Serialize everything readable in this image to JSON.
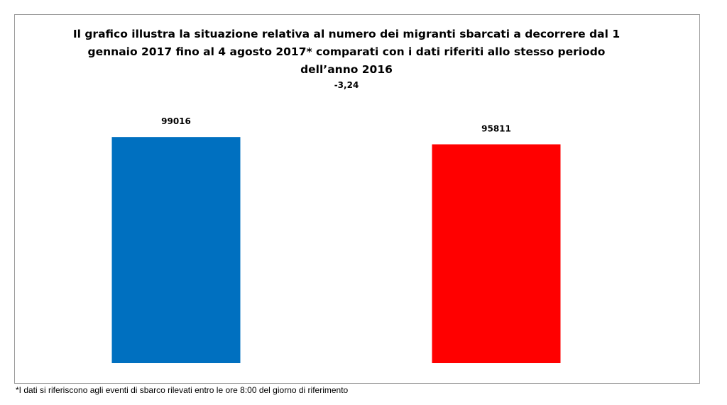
{
  "chart_data": {
    "type": "bar",
    "title_lines": [
      "Il grafico illustra la situazione relativa al numero dei migranti sbarcati a decorrere dal 1",
      "gennaio 2017 fino al 4 agosto 2017* comparati con i dati riferiti allo stesso periodo",
      "dell’anno 2016"
    ],
    "subtitle": "-3,24",
    "categories": [
      "",
      ""
    ],
    "values": [
      99016,
      95811
    ],
    "data_labels": [
      "99016",
      "95811"
    ],
    "colors": [
      "#0070C0",
      "#FF0000"
    ],
    "ylim": [
      0,
      100000
    ],
    "grid": false,
    "legend": "none"
  },
  "footnote": "*I dati si riferiscono agli eventi di sbarco rilevati entro le ore 8:00 del giorno di riferimento"
}
